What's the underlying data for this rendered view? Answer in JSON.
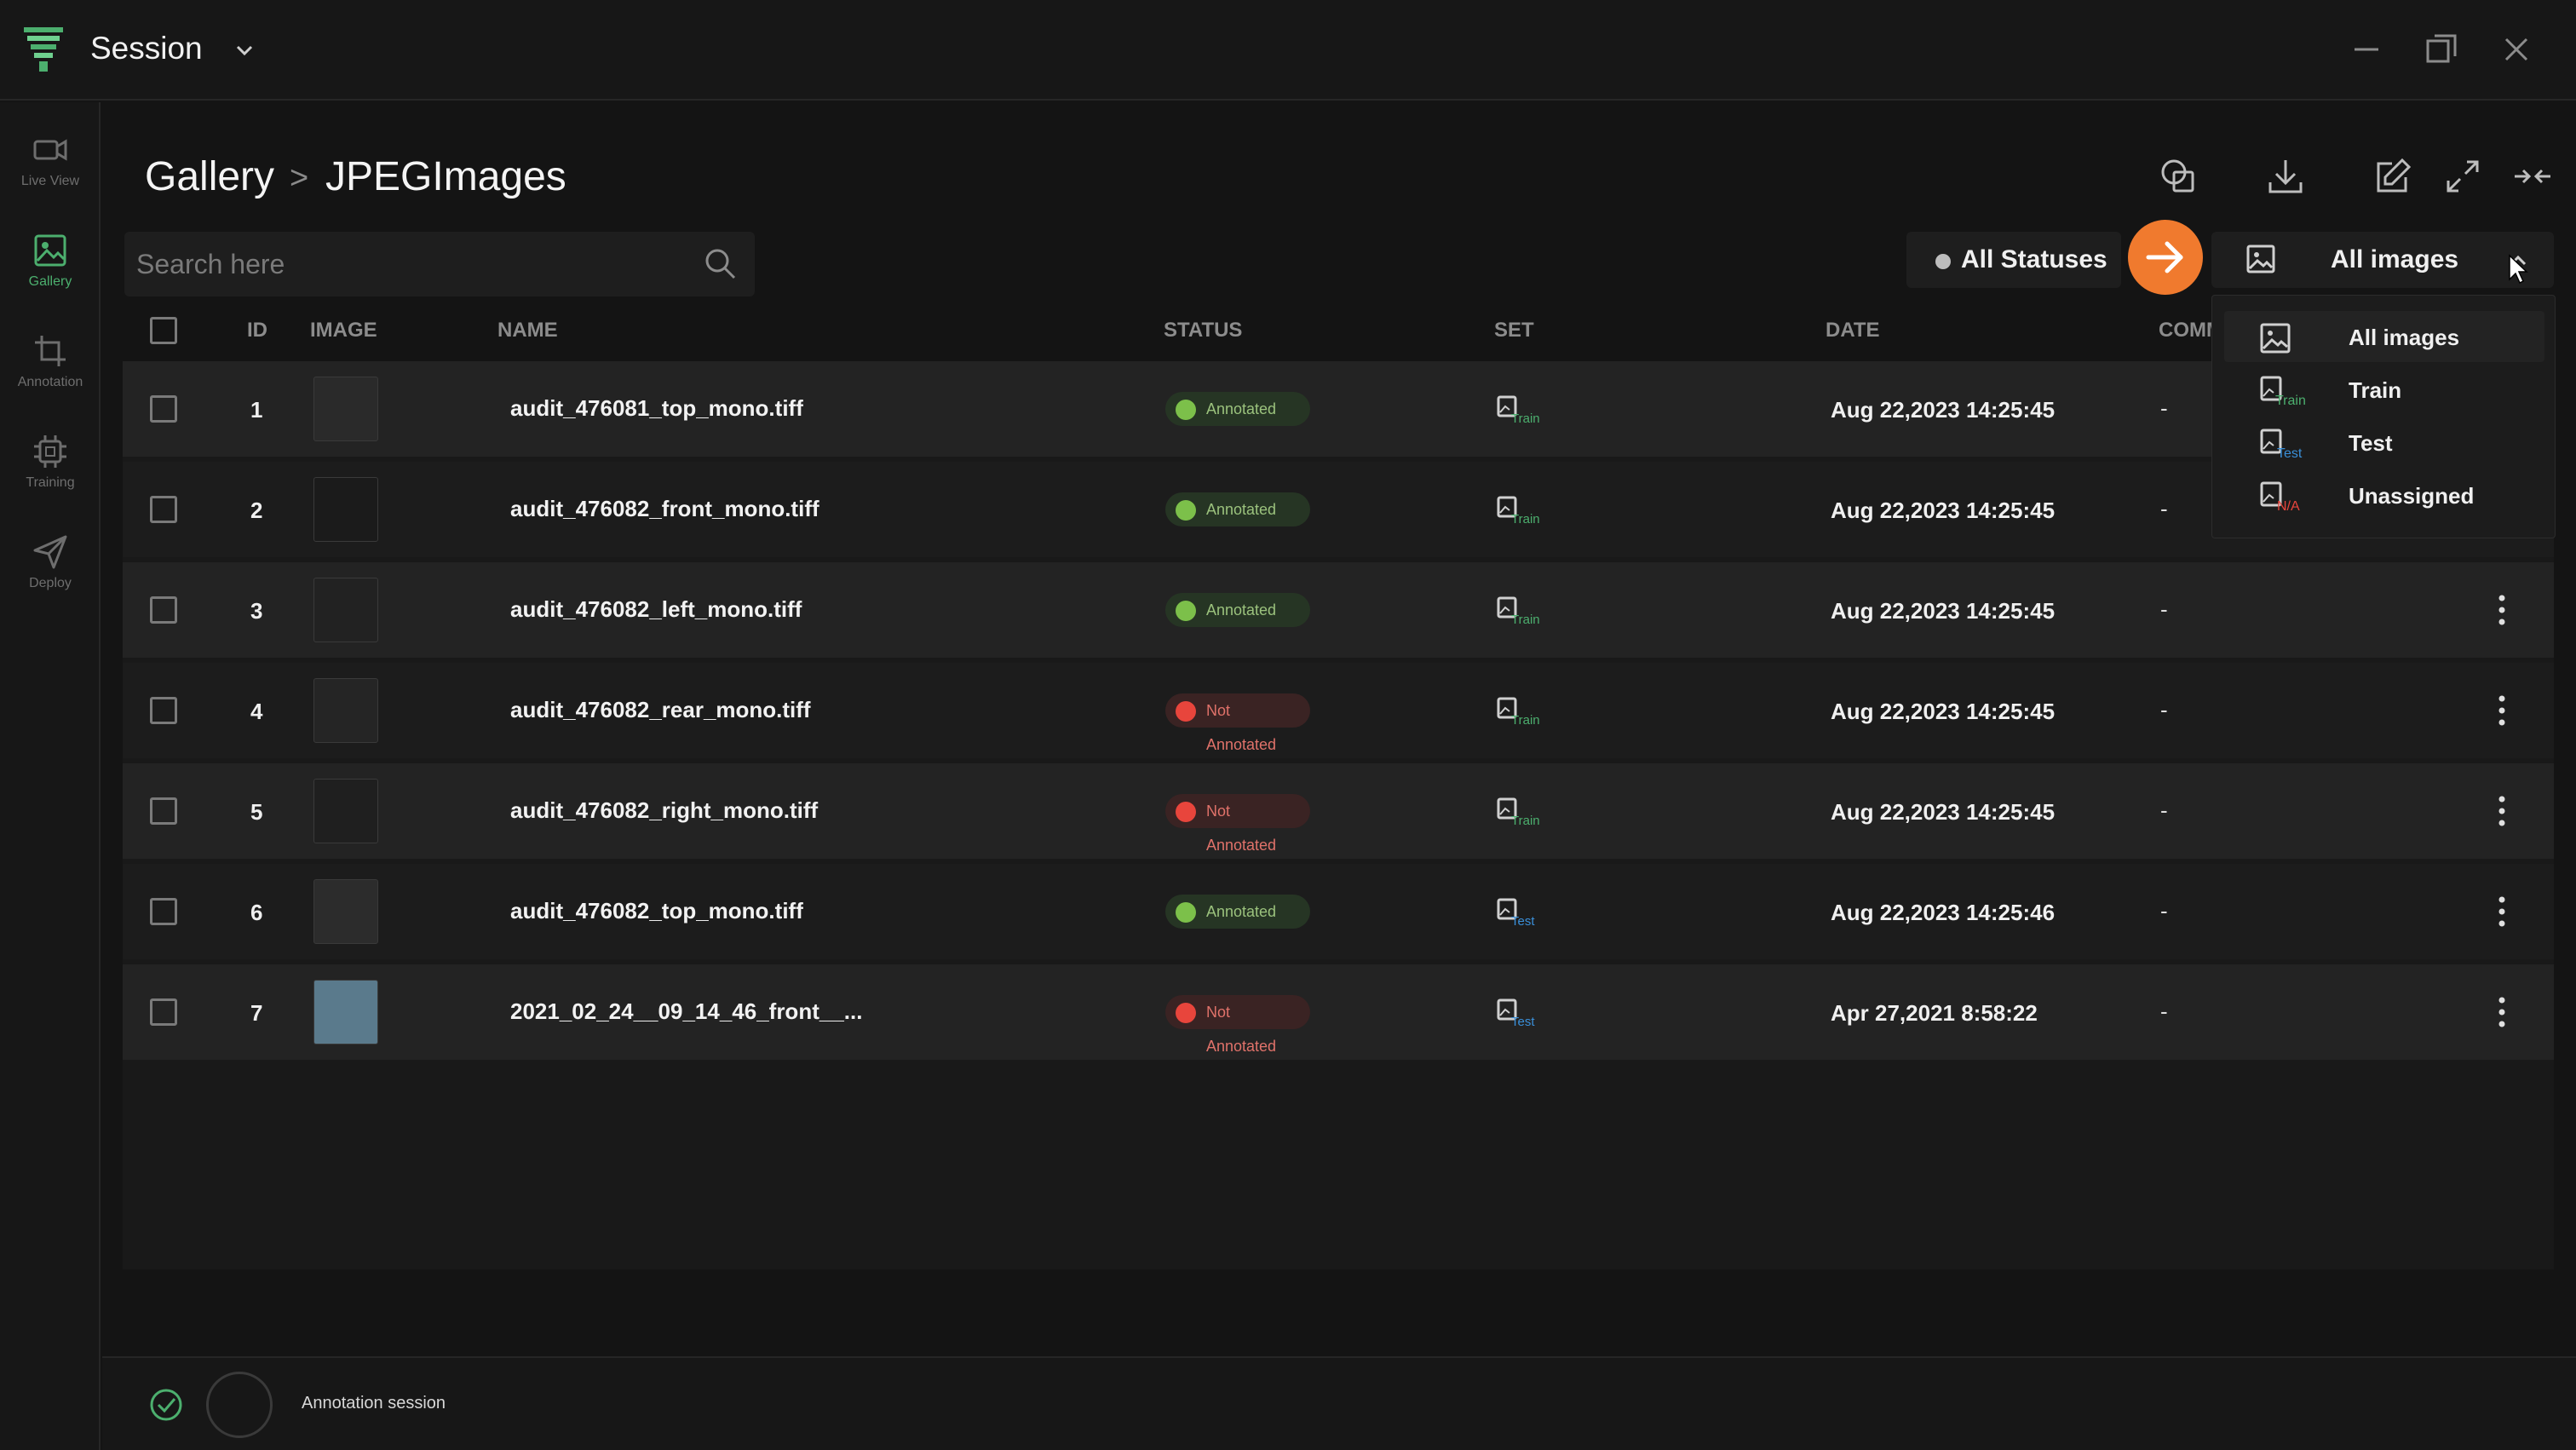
{
  "window": {
    "title": "Session",
    "controls": [
      "minimize-icon",
      "maximize-icon",
      "close-icon"
    ]
  },
  "sidebar": {
    "items": [
      {
        "label": "Live View",
        "icon": "video-camera-icon",
        "active": false
      },
      {
        "label": "Gallery",
        "icon": "image-icon",
        "active": true
      },
      {
        "label": "Annotation",
        "icon": "crop-icon",
        "active": false
      },
      {
        "label": "Training",
        "icon": "chip-icon",
        "active": false
      },
      {
        "label": "Deploy",
        "icon": "send-icon",
        "active": false
      }
    ]
  },
  "breadcrumb": {
    "root": "Gallery",
    "separator": ">",
    "current": "JPEGImages"
  },
  "toolbar": {
    "icons": [
      "image-compare-icon",
      "download-icon",
      "edit-icon",
      "expand-icon",
      "collapse-icon"
    ]
  },
  "search": {
    "placeholder": "Search here",
    "value": ""
  },
  "filters": {
    "status": {
      "label": "All Statuses"
    },
    "set": {
      "label": "All images",
      "open": true
    }
  },
  "table": {
    "headers": {
      "id": "ID",
      "image": "IMAGE",
      "name": "NAME",
      "status": "STATUS",
      "set": "SET",
      "date": "DATE",
      "comment": "COMM"
    },
    "rows": [
      {
        "id": "1",
        "name": "audit_476081_top_mono.tiff",
        "status": "Annotated",
        "set": "Train",
        "date": "Aug 22,2023 14:25:45",
        "comment": "-"
      },
      {
        "id": "2",
        "name": "audit_476082_front_mono.tiff",
        "status": "Annotated",
        "set": "Train",
        "date": "Aug 22,2023 14:25:45",
        "comment": "-"
      },
      {
        "id": "3",
        "name": "audit_476082_left_mono.tiff",
        "status": "Annotated",
        "set": "Train",
        "date": "Aug 22,2023 14:25:45",
        "comment": "-"
      },
      {
        "id": "4",
        "name": "audit_476082_rear_mono.tiff",
        "status": "Not Annotated",
        "set": "Train",
        "date": "Aug 22,2023 14:25:45",
        "comment": "-"
      },
      {
        "id": "5",
        "name": "audit_476082_right_mono.tiff",
        "status": "Not Annotated",
        "set": "Train",
        "date": "Aug 22,2023 14:25:45",
        "comment": "-"
      },
      {
        "id": "6",
        "name": "audit_476082_top_mono.tiff",
        "status": "Annotated",
        "set": "Test",
        "date": "Aug 22,2023 14:25:46",
        "comment": "-"
      },
      {
        "id": "7",
        "name": "2021_02_24__09_14_46_front__...",
        "status": "Not Annotated",
        "set": "Test",
        "date": "Apr 27,2021 8:58:22",
        "comment": "-"
      }
    ]
  },
  "set_dropdown": {
    "items": [
      {
        "label": "All images",
        "tag": "",
        "selected": true
      },
      {
        "label": "Train",
        "tag": "Train",
        "selected": false
      },
      {
        "label": "Test",
        "tag": "Test",
        "selected": false
      },
      {
        "label": "Unassigned",
        "tag": "N/A",
        "selected": false
      }
    ]
  },
  "footer": {
    "session_label": "Annotation session"
  },
  "colors": {
    "accent_green": "#4caf6e",
    "annotated": "#7cc04a",
    "not_annotated": "#e8453c",
    "train_tag": "#4caf6e",
    "test_tag": "#3a8fd8",
    "na_tag": "#e8453c",
    "orange_button": "#f07a2e"
  }
}
